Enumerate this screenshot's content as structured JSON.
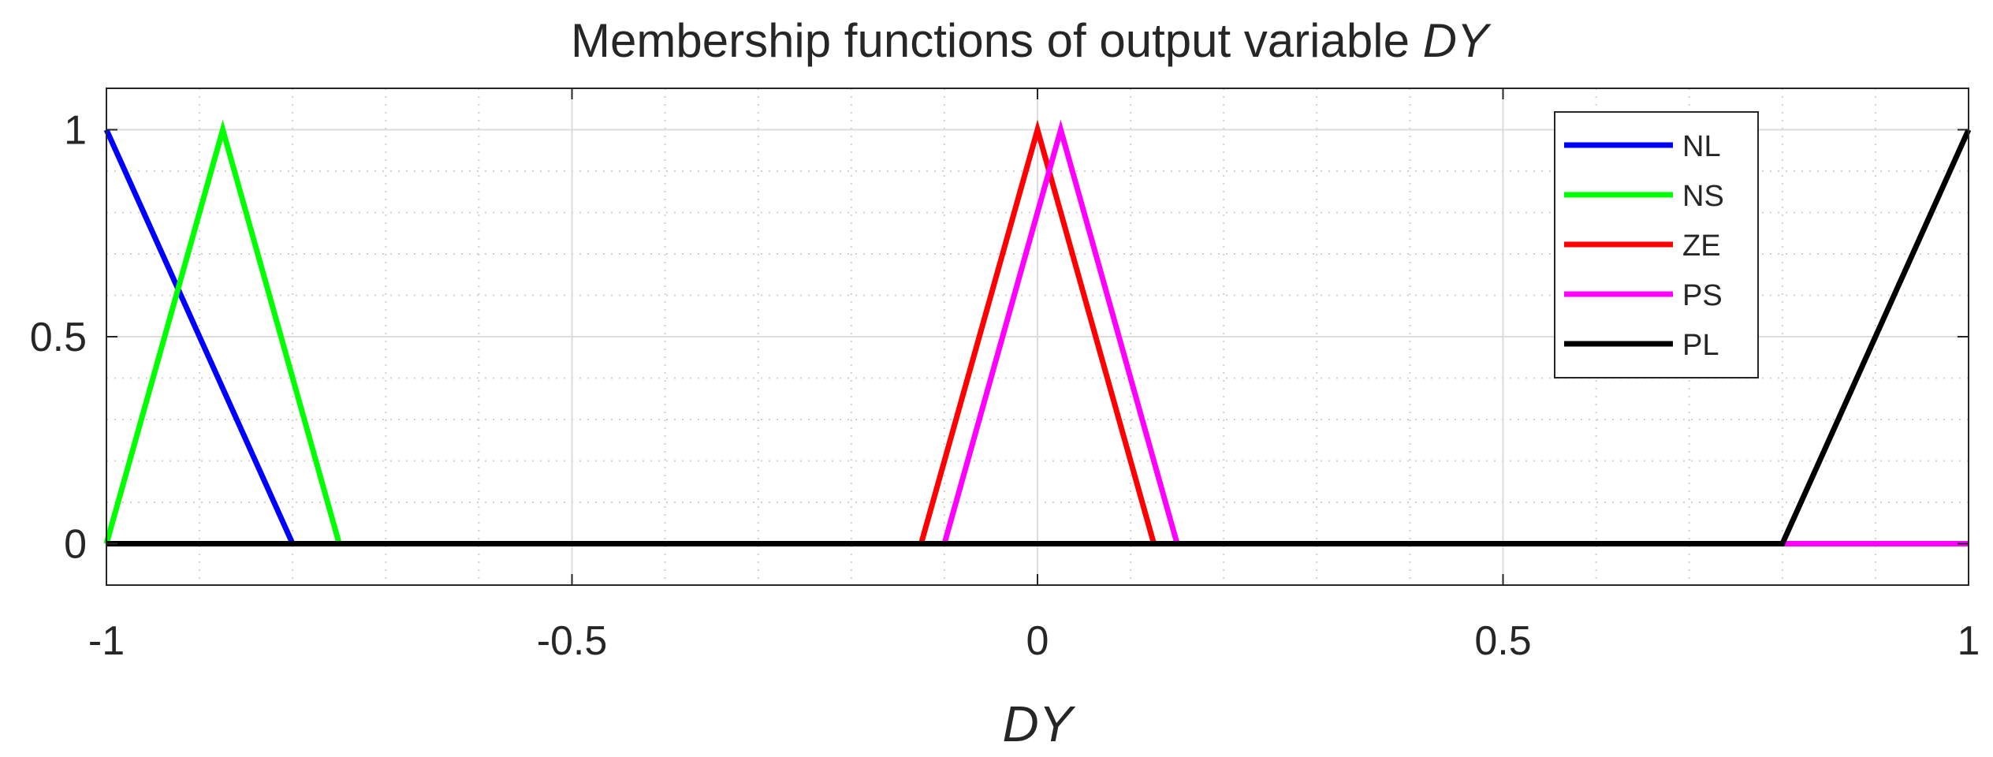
{
  "chart_data": {
    "type": "line",
    "title_prefix": "Membership functions of output variable ",
    "title_var": "DY",
    "xlabel": "DY",
    "ylabel": "",
    "xlim": [
      -1,
      1
    ],
    "ylim": [
      -0.1,
      1.1
    ],
    "xticks": [
      -1,
      -0.5,
      0,
      0.5,
      1
    ],
    "xtick_labels": [
      "-1",
      "-0.5",
      "0",
      "0.5",
      "1"
    ],
    "yticks": [
      0,
      0.5,
      1
    ],
    "ytick_labels": [
      "0",
      "0.5",
      "1"
    ],
    "grid": true,
    "minor_grid": true,
    "legend_position": "top-right",
    "series": [
      {
        "name": "NL",
        "color": "#0000ff",
        "x": [
          -1,
          -0.8,
          1
        ],
        "y": [
          1,
          0,
          0
        ]
      },
      {
        "name": "NS",
        "color": "#00ff00",
        "x": [
          -1,
          -0.875,
          -0.75,
          1
        ],
        "y": [
          0,
          1,
          0,
          0
        ]
      },
      {
        "name": "ZE",
        "color": "#ff0000",
        "x": [
          -1,
          -0.125,
          0,
          0.125,
          1
        ],
        "y": [
          0,
          0,
          1,
          0,
          0
        ]
      },
      {
        "name": "PS",
        "color": "#ff00ff",
        "x": [
          -1,
          -0.1,
          0.025,
          0.15,
          1
        ],
        "y": [
          0,
          0,
          1,
          0,
          0
        ]
      },
      {
        "name": "PL",
        "color": "#000000",
        "x": [
          -1,
          0.8,
          1
        ],
        "y": [
          0,
          0,
          1
        ]
      }
    ]
  }
}
